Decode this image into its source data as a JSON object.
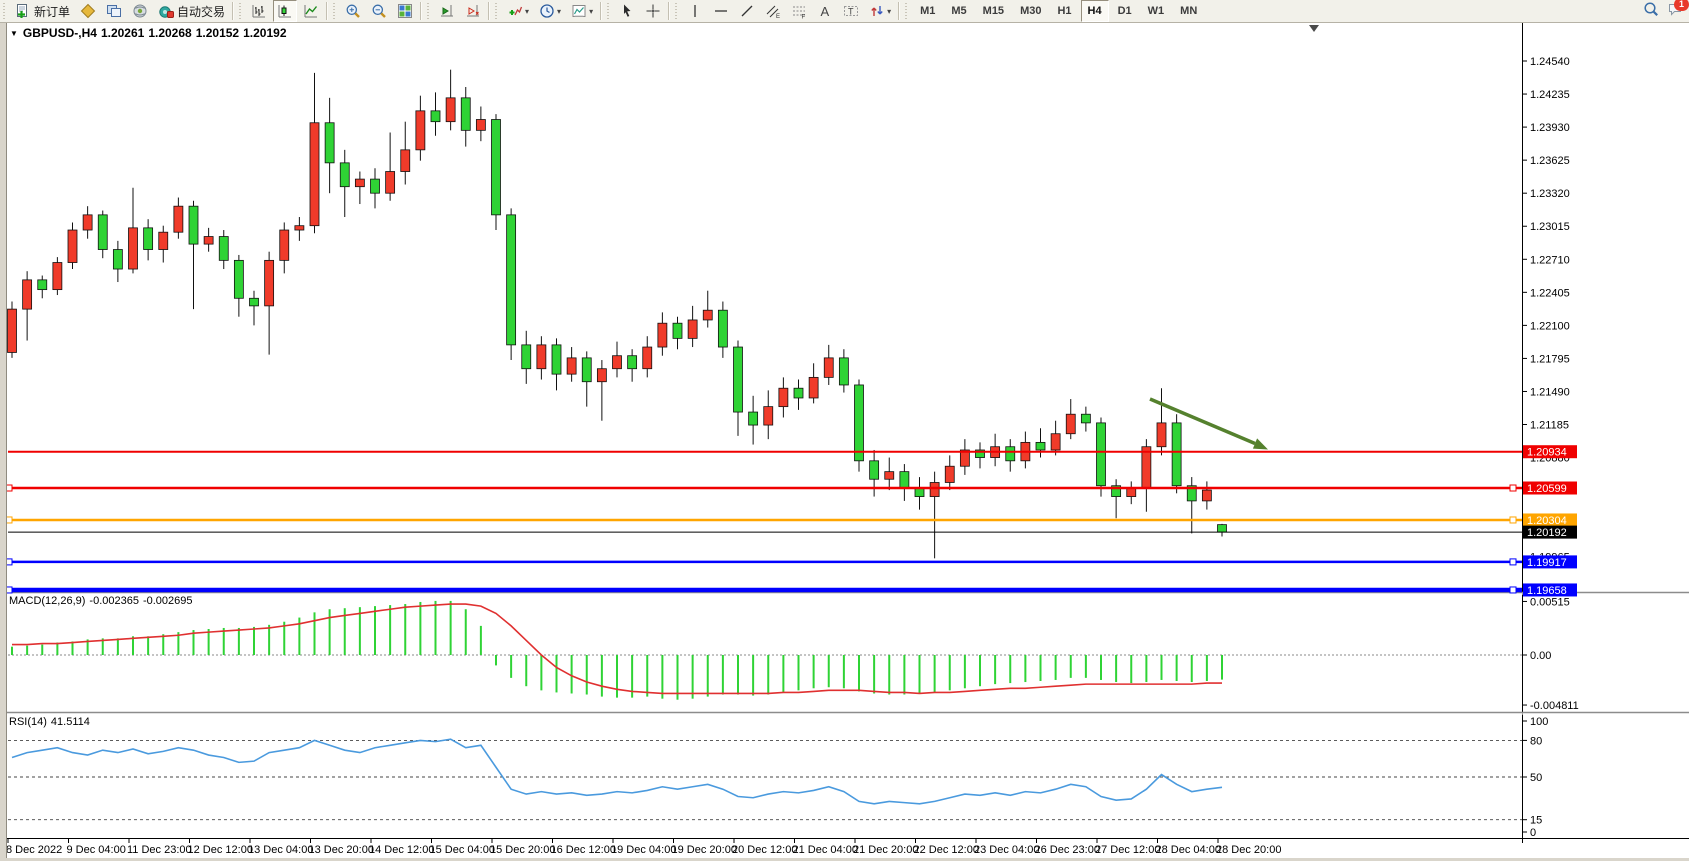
{
  "accent_colors": {
    "up_candle": "#f03b2a",
    "down_candle": "#2fd335",
    "macd_hist": "#2fd335",
    "macd_signal": "#e03030",
    "rsi_line": "#4a9ade",
    "arrow": "#55812e",
    "level_red": "#f00000",
    "level_orange": "#ffa500",
    "level_blue": "#0000ff",
    "level_black": "#000000"
  },
  "toolbar": {
    "groups": [
      {
        "name": "trade",
        "items": [
          {
            "name": "new-order-button",
            "icon": "new-order-icon",
            "label": "新订单"
          },
          {
            "name": "market-watch-button",
            "icon": "market-watch-icon"
          },
          {
            "name": "data-window-button",
            "icon": "data-window-icon"
          },
          {
            "name": "strategy-button",
            "icon": "strategy-icon"
          },
          {
            "name": "auto-trading-button",
            "icon": "auto-trading-icon",
            "label": "自动交易"
          }
        ]
      },
      {
        "name": "chart-types",
        "items": [
          {
            "name": "bar-chart-button",
            "icon": "bar-chart-icon"
          },
          {
            "name": "candlestick-chart-button",
            "icon": "candlestick-chart-icon",
            "active": true
          },
          {
            "name": "line-chart-button",
            "icon": "line-chart-icon"
          }
        ]
      },
      {
        "name": "zoom",
        "items": [
          {
            "name": "zoom-in-button",
            "icon": "zoom-in-icon"
          },
          {
            "name": "zoom-out-button",
            "icon": "zoom-out-icon"
          },
          {
            "name": "tile-windows-button",
            "icon": "tile-windows-icon"
          }
        ]
      },
      {
        "name": "scroll",
        "items": [
          {
            "name": "chart-shift-button",
            "icon": "chart-shift-icon"
          },
          {
            "name": "auto-scroll-button",
            "icon": "auto-scroll-icon"
          }
        ]
      },
      {
        "name": "tools",
        "items": [
          {
            "name": "indicators-button",
            "icon": "indicators-icon",
            "dropdown": true
          },
          {
            "name": "periods-button",
            "icon": "periods-icon",
            "dropdown": true
          },
          {
            "name": "templates-button",
            "icon": "templates-icon",
            "dropdown": true
          }
        ]
      },
      {
        "name": "pointer",
        "items": [
          {
            "name": "cursor-button",
            "icon": "cursor-icon"
          },
          {
            "name": "crosshair-button",
            "icon": "crosshair-icon"
          }
        ]
      },
      {
        "name": "objects",
        "items": [
          {
            "name": "vertical-line-button",
            "icon": "vertical-line-icon"
          },
          {
            "name": "horizontal-line-button",
            "icon": "horizontal-line-icon"
          },
          {
            "name": "trendline-button",
            "icon": "trendline-icon"
          },
          {
            "name": "equidistant-channel-button",
            "icon": "equidistant-channel-icon"
          },
          {
            "name": "fibonacci-button",
            "icon": "fibonacci-icon"
          },
          {
            "name": "text-button",
            "icon": "text-icon"
          },
          {
            "name": "text-label-button",
            "icon": "text-label-icon"
          },
          {
            "name": "arrows-button",
            "icon": "arrows-icon",
            "dropdown": true
          }
        ]
      },
      {
        "name": "timeframes",
        "items": [
          {
            "name": "timeframe-m1",
            "label": "M1"
          },
          {
            "name": "timeframe-m5",
            "label": "M5"
          },
          {
            "name": "timeframe-m15",
            "label": "M15"
          },
          {
            "name": "timeframe-m30",
            "label": "M30"
          },
          {
            "name": "timeframe-h1",
            "label": "H1"
          },
          {
            "name": "timeframe-h4",
            "label": "H4",
            "active": true
          },
          {
            "name": "timeframe-d1",
            "label": "D1"
          },
          {
            "name": "timeframe-w1",
            "label": "W1"
          },
          {
            "name": "timeframe-mn",
            "label": "MN"
          }
        ]
      }
    ],
    "right_items": [
      {
        "name": "search-button",
        "icon": "search-icon"
      },
      {
        "name": "chat-button",
        "icon": "chat-icon",
        "badge": "1"
      }
    ]
  },
  "chart_header": {
    "collapse_marker": "▼",
    "symbol_period": "GBPUSD-,H4",
    "open": "1.20261",
    "high": "1.20268",
    "low": "1.20152",
    "close": "1.20192"
  },
  "macd_panel": {
    "title": "MACD(12,26,9)",
    "value_main": "-0.002365",
    "value_signal": "-0.002695",
    "axis_labels": [
      "0.00515",
      "0.00",
      "-0.004811"
    ]
  },
  "rsi_panel": {
    "title": "RSI(14)",
    "value": "41.5114",
    "axis_labels": [
      "100",
      "80",
      "50",
      "15",
      "0"
    ]
  },
  "chart_data": {
    "type": "candlestick",
    "symbol": "GBPUSD-",
    "timeframe": "H4",
    "y_axis_ticks": [
      "1.24540",
      "1.24235",
      "1.23930",
      "1.23625",
      "1.23320",
      "1.23015",
      "1.22710",
      "1.22405",
      "1.22100",
      "1.21795",
      "1.21490",
      "1.21185",
      "1.20880",
      "1.19965"
    ],
    "x_axis_labels": [
      "8 Dec 2022",
      "9 Dec 04:00",
      "11 Dec 23:00",
      "12 Dec 12:00",
      "13 Dec 04:00",
      "13 Dec 20:00",
      "14 Dec 12:00",
      "15 Dec 04:00",
      "15 Dec 20:00",
      "16 Dec 12:00",
      "19 Dec 04:00",
      "19 Dec 20:00",
      "20 Dec 12:00",
      "21 Dec 04:00",
      "21 Dec 20:00",
      "22 Dec 12:00",
      "23 Dec 04:00",
      "26 Dec 23:00",
      "27 Dec 12:00",
      "28 Dec 04:00",
      "28 Dec 20:00"
    ],
    "h_lines": [
      {
        "label": "1.20934",
        "price": 1.20934,
        "color": "#f00000",
        "width": 2,
        "handles": false
      },
      {
        "label": "1.20599",
        "price": 1.20599,
        "color": "#f00000",
        "width": 2.5,
        "handles": true
      },
      {
        "label": "1.20304",
        "price": 1.20304,
        "color": "#ffa500",
        "width": 2.5,
        "handles": true
      },
      {
        "label": "1.20192",
        "price": 1.20192,
        "color": "#000000",
        "width": 1,
        "handles": false
      },
      {
        "label": "1.19917",
        "price": 1.19917,
        "color": "#0000ff",
        "width": 2.5,
        "handles": true
      },
      {
        "label": "1.19658",
        "price": 1.19658,
        "color": "#0000ff",
        "width": 4.5,
        "handles": true
      }
    ],
    "ohlc": [
      [
        1.2185,
        1.2232,
        1.218,
        1.2225
      ],
      [
        1.2225,
        1.226,
        1.2196,
        1.2252
      ],
      [
        1.2252,
        1.2256,
        1.2235,
        1.2243
      ],
      [
        1.2243,
        1.2273,
        1.2238,
        1.2268
      ],
      [
        1.2268,
        1.2305,
        1.2262,
        1.2298
      ],
      [
        1.2298,
        1.232,
        1.229,
        1.2312
      ],
      [
        1.2312,
        1.2316,
        1.2272,
        1.228
      ],
      [
        1.228,
        1.2288,
        1.225,
        1.2262
      ],
      [
        1.2262,
        1.2337,
        1.2258,
        1.23
      ],
      [
        1.23,
        1.2308,
        1.227,
        1.228
      ],
      [
        1.228,
        1.2302,
        1.2268,
        1.2296
      ],
      [
        1.2296,
        1.2328,
        1.229,
        1.232
      ],
      [
        1.232,
        1.2325,
        1.2225,
        1.2285
      ],
      [
        1.2285,
        1.23,
        1.2278,
        1.2292
      ],
      [
        1.2292,
        1.2298,
        1.2262,
        1.227
      ],
      [
        1.227,
        1.2275,
        1.2218,
        1.2235
      ],
      [
        1.2235,
        1.2242,
        1.221,
        1.2228
      ],
      [
        1.2228,
        1.2278,
        1.2183,
        1.227
      ],
      [
        1.227,
        1.2305,
        1.2258,
        1.2298
      ],
      [
        1.2298,
        1.231,
        1.2288,
        1.2302
      ],
      [
        1.2302,
        1.2443,
        1.2295,
        1.2397
      ],
      [
        1.2397,
        1.242,
        1.2332,
        1.236
      ],
      [
        1.236,
        1.2372,
        1.231,
        1.2338
      ],
      [
        1.2338,
        1.2352,
        1.2322,
        1.2345
      ],
      [
        1.2345,
        1.2355,
        1.2318,
        1.2332
      ],
      [
        1.2332,
        1.2388,
        1.2325,
        1.2352
      ],
      [
        1.2352,
        1.2398,
        1.234,
        1.2372
      ],
      [
        1.2372,
        1.2422,
        1.2362,
        1.2408
      ],
      [
        1.2408,
        1.2425,
        1.2385,
        1.2398
      ],
      [
        1.2398,
        1.2446,
        1.239,
        1.242
      ],
      [
        1.242,
        1.243,
        1.2375,
        1.239
      ],
      [
        1.239,
        1.2412,
        1.238,
        1.24
      ],
      [
        1.24,
        1.2405,
        1.2298,
        1.2312
      ],
      [
        1.2312,
        1.2318,
        1.2178,
        1.2192
      ],
      [
        1.2192,
        1.2205,
        1.2156,
        1.217
      ],
      [
        1.217,
        1.22,
        1.216,
        1.2192
      ],
      [
        1.2192,
        1.2198,
        1.215,
        1.2165
      ],
      [
        1.2165,
        1.219,
        1.2158,
        1.218
      ],
      [
        1.218,
        1.2186,
        1.2135,
        1.2158
      ],
      [
        1.2158,
        1.2178,
        1.2122,
        1.217
      ],
      [
        1.217,
        1.2195,
        1.2162,
        1.2182
      ],
      [
        1.2182,
        1.2188,
        1.2158,
        1.217
      ],
      [
        1.217,
        1.22,
        1.2162,
        1.219
      ],
      [
        1.219,
        1.2222,
        1.2182,
        1.2212
      ],
      [
        1.2212,
        1.2218,
        1.2188,
        1.2198
      ],
      [
        1.2198,
        1.2228,
        1.219,
        1.2215
      ],
      [
        1.2215,
        1.2242,
        1.2208,
        1.2224
      ],
      [
        1.2224,
        1.2232,
        1.218,
        1.219
      ],
      [
        1.219,
        1.2196,
        1.2108,
        1.213
      ],
      [
        1.213,
        1.2145,
        1.21,
        1.2118
      ],
      [
        1.2118,
        1.215,
        1.2105,
        1.2135
      ],
      [
        1.2135,
        1.2162,
        1.2125,
        1.2152
      ],
      [
        1.2152,
        1.216,
        1.2132,
        1.2143
      ],
      [
        1.2143,
        1.2175,
        1.2138,
        1.2162
      ],
      [
        1.2162,
        1.2192,
        1.2155,
        1.218
      ],
      [
        1.218,
        1.2188,
        1.2148,
        1.2155
      ],
      [
        1.2155,
        1.216,
        1.2075,
        1.2085
      ],
      [
        1.2085,
        1.2095,
        1.2052,
        1.2068
      ],
      [
        1.2068,
        1.2088,
        1.2058,
        1.2075
      ],
      [
        1.2075,
        1.2082,
        1.2048,
        1.206
      ],
      [
        1.206,
        1.207,
        1.204,
        1.2052
      ],
      [
        1.2052,
        1.2075,
        1.1995,
        1.2065
      ],
      [
        1.2065,
        1.209,
        1.2058,
        1.208
      ],
      [
        1.208,
        1.2105,
        1.2072,
        1.2095
      ],
      [
        1.2095,
        1.2102,
        1.2078,
        1.2088
      ],
      [
        1.2088,
        1.211,
        1.208,
        1.2098
      ],
      [
        1.2098,
        1.2105,
        1.2075,
        1.2085
      ],
      [
        1.2085,
        1.2112,
        1.2078,
        1.2102
      ],
      [
        1.2102,
        1.2115,
        1.2088,
        1.2095
      ],
      [
        1.2095,
        1.2122,
        1.209,
        1.211
      ],
      [
        1.211,
        1.2142,
        1.2105,
        1.2128
      ],
      [
        1.2128,
        1.2135,
        1.2112,
        1.212
      ],
      [
        1.212,
        1.2125,
        1.2052,
        1.2062
      ],
      [
        1.2062,
        1.2068,
        1.2032,
        1.2052
      ],
      [
        1.2052,
        1.2066,
        1.2045,
        1.206
      ],
      [
        1.206,
        1.2105,
        1.2038,
        1.2098
      ],
      [
        1.2098,
        1.2152,
        1.209,
        1.212
      ],
      [
        1.212,
        1.2128,
        1.2055,
        1.2062
      ],
      [
        1.2062,
        1.207,
        1.2018,
        1.2048
      ],
      [
        1.2048,
        1.2066,
        1.204,
        1.2058
      ],
      [
        1.20261,
        1.20268,
        1.20152,
        1.20192
      ]
    ],
    "macd": {
      "params": [
        12,
        26,
        9
      ],
      "scale_max": 0.00515,
      "scale_min": -0.004811,
      "histogram": [
        0.0008,
        0.0009,
        0.001,
        0.0012,
        0.0013,
        0.0015,
        0.0016,
        0.0016,
        0.0018,
        0.0018,
        0.002,
        0.0022,
        0.0024,
        0.0025,
        0.0026,
        0.0026,
        0.0027,
        0.0029,
        0.0032,
        0.0036,
        0.0041,
        0.0044,
        0.0045,
        0.0046,
        0.0047,
        0.0048,
        0.0049,
        0.0051,
        0.0052,
        0.0052,
        0.0044,
        0.0028,
        -0.001,
        -0.0022,
        -0.003,
        -0.0034,
        -0.0036,
        -0.0037,
        -0.0038,
        -0.004,
        -0.0041,
        -0.0041,
        -0.004,
        -0.0042,
        -0.0043,
        -0.0042,
        -0.004,
        -0.0038,
        -0.0038,
        -0.0039,
        -0.0038,
        -0.0036,
        -0.0034,
        -0.0032,
        -0.0031,
        -0.0032,
        -0.0035,
        -0.0037,
        -0.0038,
        -0.0038,
        -0.0037,
        -0.0036,
        -0.0034,
        -0.0032,
        -0.003,
        -0.0028,
        -0.0027,
        -0.0026,
        -0.0025,
        -0.0024,
        -0.0022,
        -0.0022,
        -0.0024,
        -0.0026,
        -0.0027,
        -0.0026,
        -0.0024,
        -0.0025,
        -0.0026,
        -0.0025,
        -0.002365
      ],
      "signal": [
        0.001,
        0.001,
        0.0011,
        0.0011,
        0.0012,
        0.0013,
        0.0014,
        0.0015,
        0.0016,
        0.0017,
        0.0018,
        0.0019,
        0.0021,
        0.0022,
        0.0023,
        0.0024,
        0.0025,
        0.0026,
        0.0028,
        0.003,
        0.0033,
        0.0036,
        0.0038,
        0.004,
        0.0042,
        0.0044,
        0.0046,
        0.0047,
        0.0048,
        0.0049,
        0.0049,
        0.0047,
        0.004,
        0.0028,
        0.0014,
        0.0,
        -0.0012,
        -0.002,
        -0.0026,
        -0.003,
        -0.0033,
        -0.0035,
        -0.0036,
        -0.0037,
        -0.0037,
        -0.0037,
        -0.0037,
        -0.0037,
        -0.0037,
        -0.0037,
        -0.0037,
        -0.0036,
        -0.0036,
        -0.0035,
        -0.0034,
        -0.0034,
        -0.0034,
        -0.0035,
        -0.0036,
        -0.0036,
        -0.0037,
        -0.0036,
        -0.0036,
        -0.0035,
        -0.0034,
        -0.0033,
        -0.0032,
        -0.0032,
        -0.0031,
        -0.003,
        -0.0029,
        -0.0028,
        -0.0028,
        -0.0028,
        -0.0028,
        -0.0028,
        -0.0028,
        -0.0028,
        -0.0028,
        -0.0027,
        -0.002695
      ]
    },
    "rsi": {
      "period": 14,
      "levels": [
        80,
        50,
        15
      ],
      "values": [
        66,
        70,
        72,
        74,
        70,
        68,
        72,
        70,
        73,
        69,
        71,
        74,
        72,
        68,
        66,
        62,
        63,
        70,
        72,
        74,
        80,
        76,
        72,
        70,
        74,
        76,
        78,
        80,
        79,
        81,
        74,
        76,
        58,
        40,
        36,
        38,
        36,
        37,
        35,
        36,
        38,
        37,
        39,
        42,
        40,
        42,
        44,
        40,
        34,
        33,
        36,
        38,
        37,
        39,
        42,
        38,
        30,
        28,
        30,
        29,
        28,
        30,
        33,
        36,
        35,
        37,
        35,
        38,
        37,
        40,
        44,
        42,
        34,
        31,
        32,
        40,
        52,
        44,
        38,
        40,
        41.5114
      ]
    },
    "annotation_arrow": {
      "direction": "down-right",
      "color": "#55812e"
    }
  }
}
